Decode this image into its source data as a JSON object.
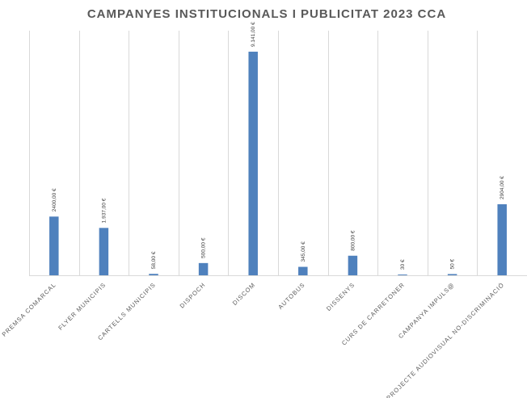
{
  "chart_data": {
    "type": "bar",
    "title": "CAMPANYES INSTITUCIONALS I PUBLICITAT 2023 CCA",
    "xlabel": "",
    "ylabel": "",
    "categories": [
      "PREMSA COMARCAL",
      "FLYER MUNICIPIS",
      "CARTELLS MUNICIPIS",
      "DISPOCH",
      "DISCOM",
      "AUTOBUS",
      "DISSENYS",
      "CURS DE CARRETONER",
      "CAMPANYA IMPULS@",
      "PROJECTE AUDIOVISUAL NO-DISCRIMINACIÓ"
    ],
    "values": [
      2400,
      1937,
      58,
      500,
      9141,
      345,
      800,
      30,
      50,
      2904
    ],
    "data_labels": [
      "2400,00 €",
      "1.937,00 €",
      "58,00 €",
      "500,00 €",
      "9.141,00 €",
      "345,00 €",
      "800,00 €",
      "30 €",
      "50 €",
      "2904,00 €"
    ],
    "ylim": [
      0,
      10000
    ],
    "grid": true,
    "legend": "none",
    "bar_color": "#4f81bd"
  }
}
